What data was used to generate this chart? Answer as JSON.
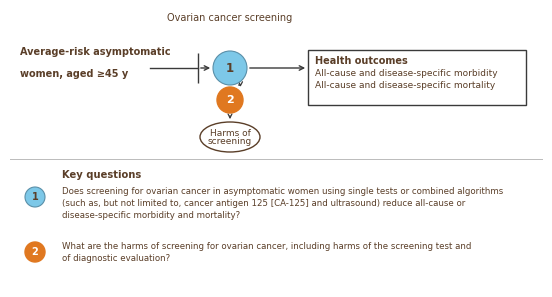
{
  "bg_color": "#ffffff",
  "text_color": "#5a3e28",
  "circle1_color": "#7dc8e8",
  "circle1_edge": "#5a8fa8",
  "circle2_color": "#e07820",
  "ellipse_edgecolor": "#5a3e28",
  "box_edgecolor": "#3a3a3a",
  "arrow_color": "#3a3a3a",
  "title_diagram": "Ovarian cancer screening",
  "left_label_line1": "Average-risk asymptomatic",
  "left_label_line2": "women, aged ≥45 y",
  "box_title": "Health outcomes",
  "box_line1": "All-cause and disease-specific morbidity",
  "box_line2": "All-cause and disease-specific mortality",
  "harms_line1": "Harms of",
  "harms_line2": "screening",
  "kq_title": "Key questions",
  "kq1_text": "Does screening for ovarian cancer in asymptomatic women using single tests or combined algorithms\n(such as, but not limited to, cancer antigen 125 [CA-125] and ultrasound) reduce all-cause or\ndisease-specific morbidity and mortality?",
  "kq2_text": "What are the harms of screening for ovarian cancer, including harms of the screening test and\nof diagnostic evaluation?",
  "figw": 5.52,
  "figh": 2.97,
  "dpi": 100
}
